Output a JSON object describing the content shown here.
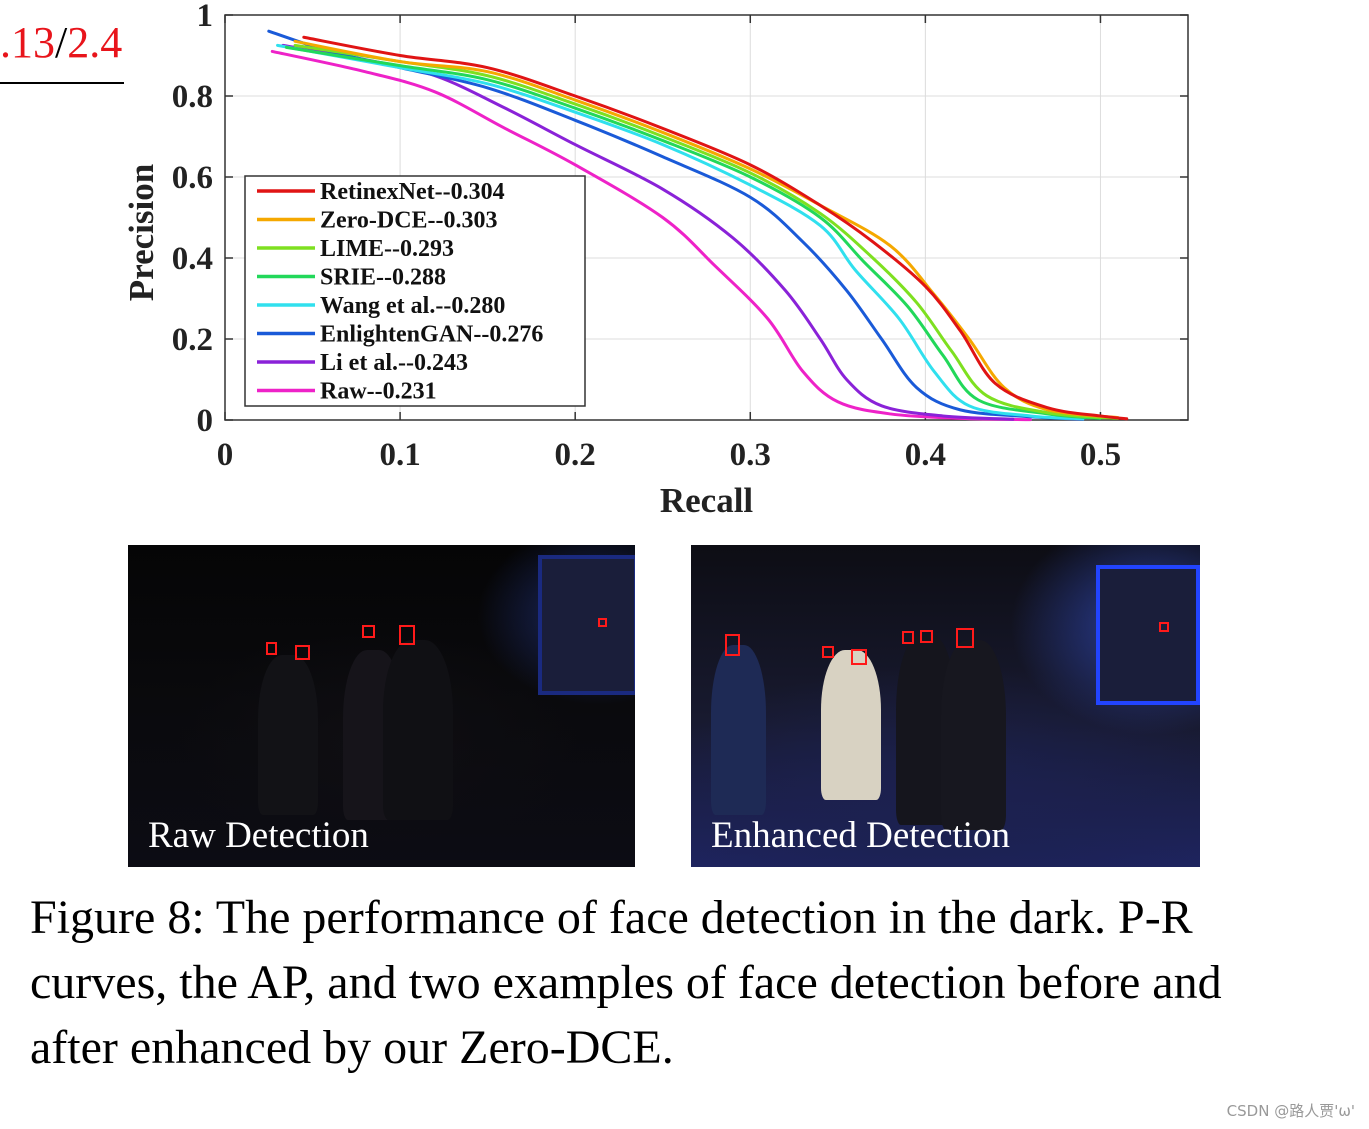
{
  "fragment": {
    "red_text": ".13",
    "black_text": "/",
    "red_text_2": "2.4"
  },
  "chart_data": {
    "type": "line",
    "title": "",
    "xlabel": "Recall",
    "ylabel": "Precision",
    "xlim": [
      0,
      0.55
    ],
    "ylim": [
      0,
      1
    ],
    "xticks": [
      0,
      0.1,
      0.2,
      0.3,
      0.4,
      0.5
    ],
    "yticks": [
      0,
      0.2,
      0.4,
      0.6,
      0.8,
      1
    ],
    "xtick_labels": [
      "0",
      "0.1",
      "0.2",
      "0.3",
      "0.4",
      "0.5"
    ],
    "ytick_labels": [
      "0",
      "0.2",
      "0.4",
      "0.6",
      "0.8",
      "1"
    ],
    "grid": true,
    "legend_position": "left",
    "series": [
      {
        "name": "RetinexNet--0.304",
        "color": "#e01414",
        "points": [
          [
            0.045,
            0.945
          ],
          [
            0.1,
            0.9
          ],
          [
            0.15,
            0.87
          ],
          [
            0.2,
            0.8
          ],
          [
            0.25,
            0.72
          ],
          [
            0.3,
            0.63
          ],
          [
            0.34,
            0.53
          ],
          [
            0.37,
            0.44
          ],
          [
            0.4,
            0.33
          ],
          [
            0.42,
            0.22
          ],
          [
            0.44,
            0.09
          ],
          [
            0.47,
            0.03
          ],
          [
            0.5,
            0.01
          ],
          [
            0.515,
            0.003
          ]
        ]
      },
      {
        "name": "Zero-DCE--0.303",
        "color": "#f5a800",
        "points": [
          [
            0.04,
            0.935
          ],
          [
            0.1,
            0.885
          ],
          [
            0.15,
            0.86
          ],
          [
            0.2,
            0.79
          ],
          [
            0.25,
            0.71
          ],
          [
            0.3,
            0.62
          ],
          [
            0.34,
            0.53
          ],
          [
            0.38,
            0.43
          ],
          [
            0.405,
            0.31
          ],
          [
            0.425,
            0.2
          ],
          [
            0.445,
            0.08
          ],
          [
            0.47,
            0.025
          ],
          [
            0.51,
            0.006
          ]
        ]
      },
      {
        "name": "LIME--0.293",
        "color": "#7ee020",
        "points": [
          [
            0.04,
            0.925
          ],
          [
            0.1,
            0.885
          ],
          [
            0.15,
            0.85
          ],
          [
            0.2,
            0.78
          ],
          [
            0.25,
            0.7
          ],
          [
            0.3,
            0.61
          ],
          [
            0.34,
            0.51
          ],
          [
            0.37,
            0.4
          ],
          [
            0.395,
            0.29
          ],
          [
            0.415,
            0.17
          ],
          [
            0.435,
            0.06
          ],
          [
            0.47,
            0.018
          ],
          [
            0.51,
            0.004
          ]
        ]
      },
      {
        "name": "SRIE--0.288",
        "color": "#22d85a",
        "points": [
          [
            0.035,
            0.92
          ],
          [
            0.1,
            0.875
          ],
          [
            0.15,
            0.84
          ],
          [
            0.2,
            0.77
          ],
          [
            0.25,
            0.69
          ],
          [
            0.3,
            0.6
          ],
          [
            0.34,
            0.5
          ],
          [
            0.365,
            0.39
          ],
          [
            0.39,
            0.28
          ],
          [
            0.41,
            0.16
          ],
          [
            0.43,
            0.05
          ],
          [
            0.47,
            0.015
          ],
          [
            0.5,
            0.004
          ]
        ]
      },
      {
        "name": "Wang et al.--0.280",
        "color": "#30e0ee",
        "points": [
          [
            0.03,
            0.925
          ],
          [
            0.1,
            0.87
          ],
          [
            0.15,
            0.83
          ],
          [
            0.2,
            0.76
          ],
          [
            0.25,
            0.68
          ],
          [
            0.3,
            0.58
          ],
          [
            0.34,
            0.48
          ],
          [
            0.36,
            0.37
          ],
          [
            0.385,
            0.25
          ],
          [
            0.405,
            0.12
          ],
          [
            0.425,
            0.035
          ],
          [
            0.46,
            0.01
          ],
          [
            0.49,
            0.003
          ]
        ]
      },
      {
        "name": "EnlightenGAN--0.276",
        "color": "#1a5ad8",
        "points": [
          [
            0.025,
            0.96
          ],
          [
            0.06,
            0.91
          ],
          [
            0.1,
            0.87
          ],
          [
            0.15,
            0.82
          ],
          [
            0.2,
            0.74
          ],
          [
            0.25,
            0.65
          ],
          [
            0.3,
            0.55
          ],
          [
            0.33,
            0.44
          ],
          [
            0.355,
            0.32
          ],
          [
            0.375,
            0.2
          ],
          [
            0.395,
            0.08
          ],
          [
            0.42,
            0.025
          ],
          [
            0.46,
            0.008
          ],
          [
            0.49,
            0.002
          ]
        ]
      },
      {
        "name": "Li et al.--0.243",
        "color": "#8a22d8",
        "points": [
          [
            0.033,
            0.925
          ],
          [
            0.08,
            0.89
          ],
          [
            0.12,
            0.85
          ],
          [
            0.16,
            0.77
          ],
          [
            0.2,
            0.68
          ],
          [
            0.25,
            0.57
          ],
          [
            0.29,
            0.45
          ],
          [
            0.32,
            0.32
          ],
          [
            0.34,
            0.2
          ],
          [
            0.355,
            0.1
          ],
          [
            0.375,
            0.035
          ],
          [
            0.41,
            0.01
          ],
          [
            0.45,
            0.002
          ]
        ]
      },
      {
        "name": "Raw--0.231",
        "color": "#ee22c8",
        "points": [
          [
            0.027,
            0.91
          ],
          [
            0.08,
            0.86
          ],
          [
            0.12,
            0.81
          ],
          [
            0.16,
            0.72
          ],
          [
            0.2,
            0.63
          ],
          [
            0.25,
            0.5
          ],
          [
            0.28,
            0.38
          ],
          [
            0.31,
            0.25
          ],
          [
            0.33,
            0.12
          ],
          [
            0.35,
            0.045
          ],
          [
            0.38,
            0.015
          ],
          [
            0.42,
            0.004
          ],
          [
            0.46,
            0.001
          ]
        ]
      }
    ]
  },
  "photos": {
    "raw_label": "Raw Detection",
    "enhanced_label": "Enhanced Detection"
  },
  "caption": "Figure 8: The performance of face detection in the dark. P-R curves, the AP, and two examples of face detection before and after enhanced by our Zero-DCE.",
  "watermark": "CSDN @路人贾'ω'"
}
